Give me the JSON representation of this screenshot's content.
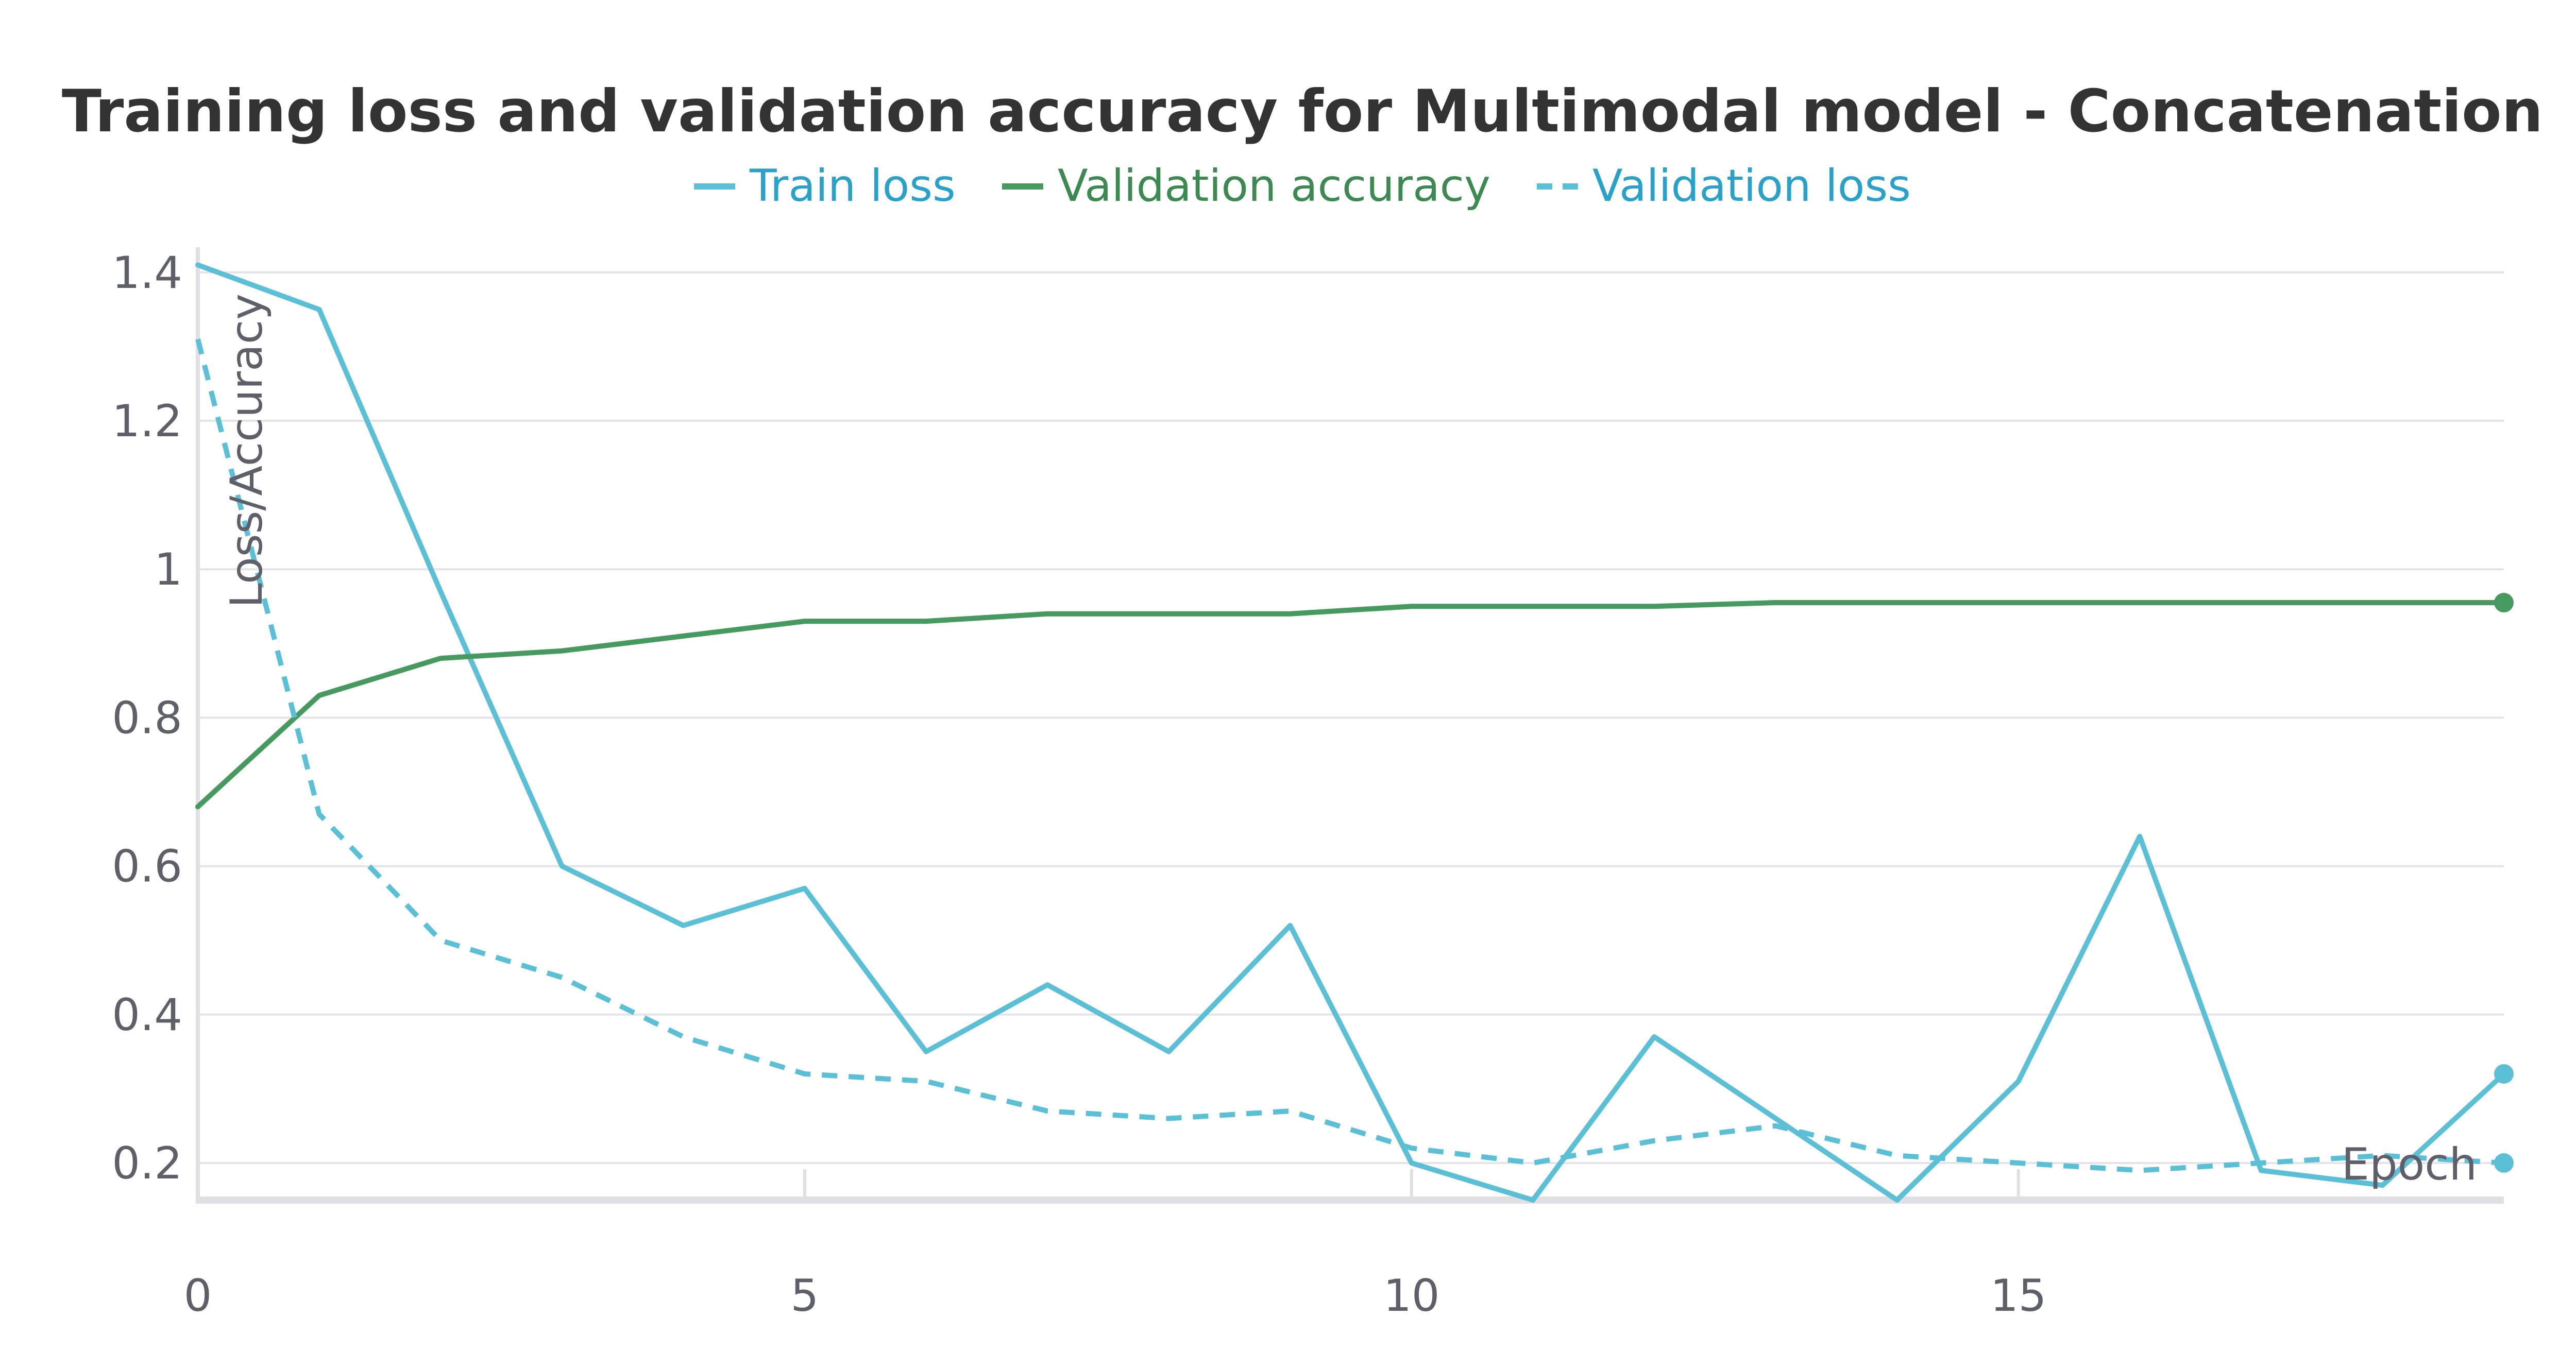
{
  "chart_data": {
    "type": "line",
    "title": "Training loss and validation accuracy for Multimodal model - Concatenation",
    "xlabel": "Epoch",
    "ylabel": "Loss/Accuracy",
    "xlim": [
      0,
      19
    ],
    "ylim": [
      0.15,
      1.42
    ],
    "x_ticks": [
      0,
      5,
      10,
      15
    ],
    "y_ticks": [
      0.2,
      0.4,
      0.6,
      0.8,
      1.0,
      1.2,
      1.4
    ],
    "y_tick_labels": [
      "0.2",
      "0.4",
      "0.6",
      "0.8",
      "1",
      "1.2",
      "1.4"
    ],
    "grid": true,
    "legend_position": "top-center",
    "x": [
      0,
      1,
      2,
      3,
      4,
      5,
      6,
      7,
      8,
      9,
      10,
      11,
      12,
      13,
      14,
      15,
      16,
      17,
      18,
      19
    ],
    "series": [
      {
        "name": "Train loss",
        "color": "#5bc0d6",
        "dash": "solid",
        "values": [
          1.41,
          1.35,
          0.97,
          0.6,
          0.52,
          0.57,
          0.35,
          0.44,
          0.35,
          0.52,
          0.2,
          0.15,
          0.37,
          0.26,
          0.15,
          0.31,
          0.64,
          0.19,
          0.17,
          0.32
        ]
      },
      {
        "name": "Validation accuracy",
        "color": "#479a5f",
        "dash": "solid",
        "values": [
          0.68,
          0.83,
          0.88,
          0.89,
          0.91,
          0.93,
          0.93,
          0.94,
          0.94,
          0.94,
          0.95,
          0.95,
          0.95,
          0.955,
          0.955,
          0.955,
          0.955,
          0.955,
          0.955,
          0.955
        ]
      },
      {
        "name": "Validation loss",
        "color": "#5bc0d6",
        "dash": "dashed",
        "values": [
          1.31,
          0.67,
          0.5,
          0.45,
          0.37,
          0.32,
          0.31,
          0.27,
          0.26,
          0.27,
          0.22,
          0.2,
          0.23,
          0.25,
          0.21,
          0.2,
          0.19,
          0.2,
          0.21,
          0.2
        ]
      }
    ]
  },
  "legend_text_colors": [
    "#2aa1c9",
    "#3c8a52",
    "#2aa1c9"
  ]
}
